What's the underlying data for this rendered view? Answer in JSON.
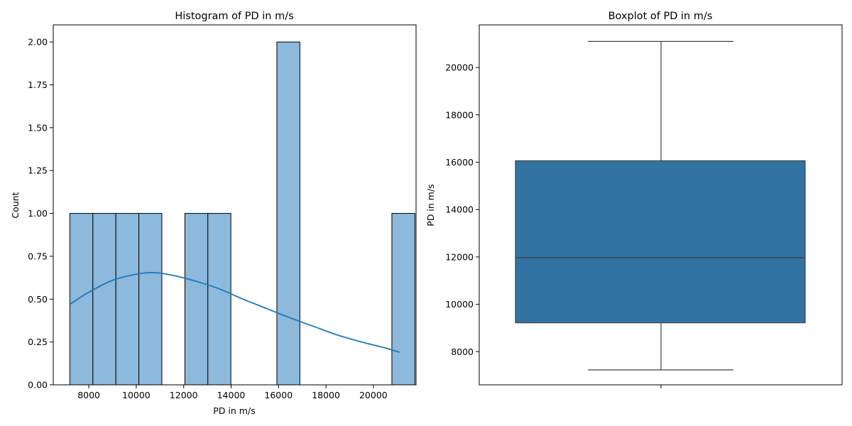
{
  "chart_data": [
    {
      "type": "bar",
      "subtype": "histogram",
      "title": "Histogram of PD in m/s",
      "xlabel": "PD in m/s",
      "ylabel": "Count",
      "xlim": [
        6500,
        21800
      ],
      "ylim": [
        0,
        2.1
      ],
      "xticks": [
        8000,
        10000,
        12000,
        14000,
        16000,
        18000,
        20000
      ],
      "yticks": [
        0.0,
        0.25,
        0.5,
        0.75,
        1.0,
        1.25,
        1.5,
        1.75,
        2.0
      ],
      "ytick_labels": [
        "0.00",
        "0.25",
        "0.50",
        "0.75",
        "1.00",
        "1.25",
        "1.50",
        "1.75",
        "2.00"
      ],
      "bin_start": 7200,
      "bin_width": 970,
      "counts": [
        1,
        1,
        1,
        1,
        0,
        1,
        1,
        0,
        0,
        2,
        0,
        0,
        0,
        0,
        1
      ],
      "kde": {
        "x": [
          7200,
          8000,
          9000,
          10000,
          10700,
          11500,
          12500,
          13500,
          14500,
          15500,
          16500,
          17500,
          18500,
          19500,
          20500,
          21100
        ],
        "y": [
          0.47,
          0.54,
          0.61,
          0.645,
          0.655,
          0.64,
          0.605,
          0.56,
          0.5,
          0.445,
          0.39,
          0.34,
          0.29,
          0.25,
          0.215,
          0.19
        ]
      },
      "bar_color": "#8cb9dc",
      "line_color": "#1f77b4",
      "grid": false
    },
    {
      "type": "box",
      "title": "Boxplot of PD in m/s",
      "ylabel": "PD in m/s",
      "xlabel": "",
      "ylim": [
        6600,
        21800
      ],
      "yticks": [
        8000,
        10000,
        12000,
        14000,
        16000,
        18000,
        20000
      ],
      "whisker_low": 7230,
      "q1": 9220,
      "median": 11970,
      "q3": 16060,
      "whisker_high": 21100,
      "box_color": "#3274a1",
      "grid": false
    }
  ]
}
